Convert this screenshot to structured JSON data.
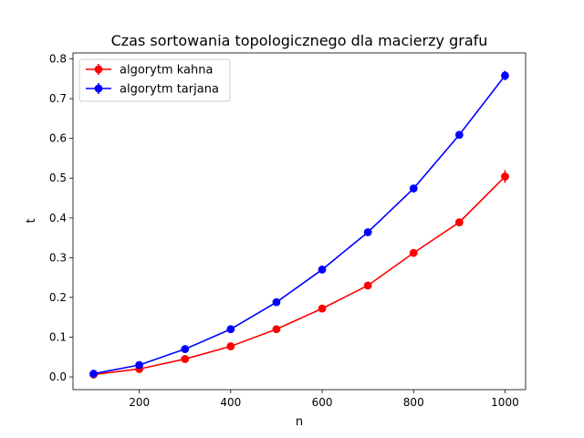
{
  "chart_data": {
    "type": "line",
    "title": "Czas sortowania topologicznego dla macierzy grafu",
    "xlabel": "n",
    "ylabel": "t",
    "xlim": [
      55,
      1045
    ],
    "ylim": [
      -0.032,
      0.815
    ],
    "xticks": [
      200,
      400,
      600,
      800,
      1000
    ],
    "yticks": [
      0.0,
      0.1,
      0.2,
      0.3,
      0.4,
      0.5,
      0.6,
      0.7,
      0.8
    ],
    "xtick_labels": [
      "200",
      "400",
      "600",
      "800",
      "1000"
    ],
    "ytick_labels": [
      "0.0",
      "0.1",
      "0.2",
      "0.3",
      "0.4",
      "0.5",
      "0.6",
      "0.7",
      "0.8"
    ],
    "grid": false,
    "legend_position": "top-left",
    "x": [
      100,
      200,
      300,
      400,
      500,
      600,
      700,
      800,
      900,
      1000
    ],
    "series": [
      {
        "name": "algorytm kahna",
        "color": "#ff0000",
        "values": [
          0.006,
          0.02,
          0.045,
          0.077,
          0.12,
          0.172,
          0.23,
          0.312,
          0.389,
          0.504
        ],
        "errors": [
          0.002,
          0.002,
          0.002,
          0.002,
          0.003,
          0.003,
          0.003,
          0.004,
          0.005,
          0.016
        ]
      },
      {
        "name": "algorytm tarjana",
        "color": "#0000ff",
        "values": [
          0.008,
          0.03,
          0.07,
          0.12,
          0.188,
          0.27,
          0.364,
          0.474,
          0.609,
          0.758
        ],
        "errors": [
          0.002,
          0.002,
          0.002,
          0.002,
          0.003,
          0.003,
          0.003,
          0.004,
          0.005,
          0.012
        ]
      }
    ]
  }
}
